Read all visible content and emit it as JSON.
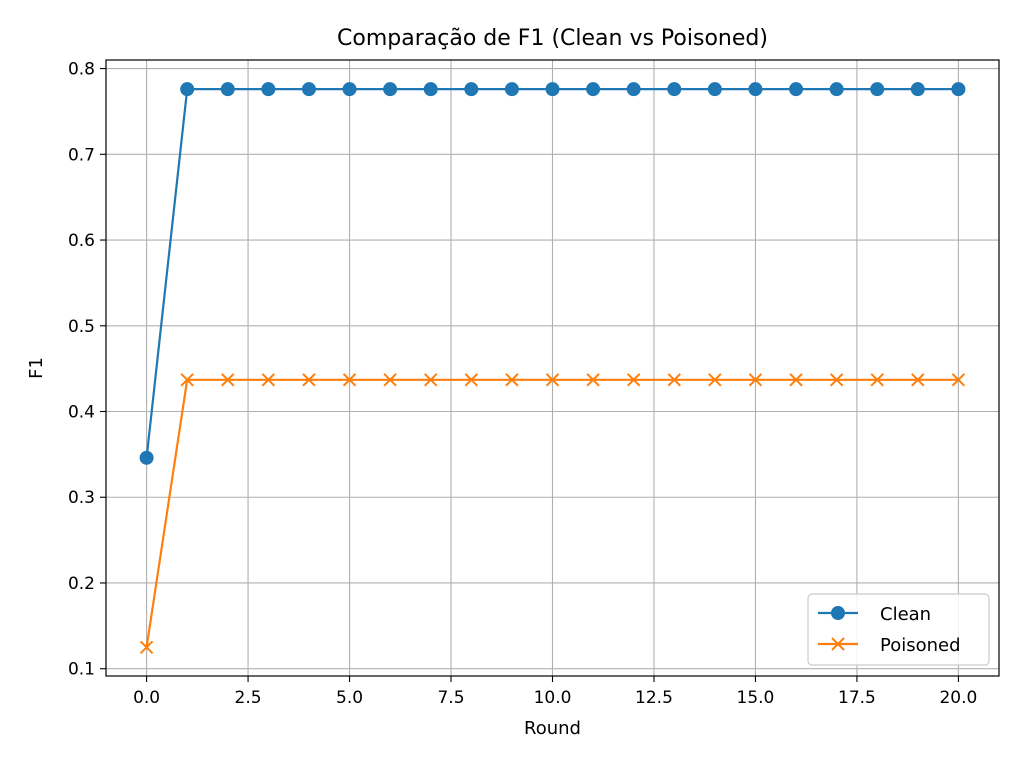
{
  "chart_data": {
    "type": "line",
    "title": "Comparação de F1 (Clean vs Poisoned)",
    "xlabel": "Round",
    "ylabel": "F1",
    "xlim": [
      -1,
      21
    ],
    "ylim": [
      0.0915,
      0.81
    ],
    "x_ticks": [
      0,
      2.5,
      5,
      7.5,
      10,
      12.5,
      15,
      17.5,
      20
    ],
    "x_tick_labels": [
      "0.0",
      "2.5",
      "5.0",
      "7.5",
      "10.0",
      "12.5",
      "15.0",
      "17.5",
      "20.0"
    ],
    "y_ticks": [
      0.1,
      0.2,
      0.3,
      0.4,
      0.5,
      0.6,
      0.7,
      0.8
    ],
    "y_tick_labels": [
      "0.1",
      "0.2",
      "0.3",
      "0.4",
      "0.5",
      "0.6",
      "0.7",
      "0.8"
    ],
    "grid": true,
    "legend_position": "bottom-right",
    "x": [
      0,
      1,
      2,
      3,
      4,
      5,
      6,
      7,
      8,
      9,
      10,
      11,
      12,
      13,
      14,
      15,
      16,
      17,
      18,
      19,
      20
    ],
    "series": [
      {
        "name": "Clean",
        "color": "#1f77b4",
        "marker": "circle",
        "values": [
          0.346,
          0.776,
          0.776,
          0.776,
          0.776,
          0.776,
          0.776,
          0.776,
          0.776,
          0.776,
          0.776,
          0.776,
          0.776,
          0.776,
          0.776,
          0.776,
          0.776,
          0.776,
          0.776,
          0.776,
          0.776
        ]
      },
      {
        "name": "Poisoned",
        "color": "#ff7f0e",
        "marker": "x",
        "values": [
          0.125,
          0.437,
          0.437,
          0.437,
          0.437,
          0.437,
          0.437,
          0.437,
          0.437,
          0.437,
          0.437,
          0.437,
          0.437,
          0.437,
          0.437,
          0.437,
          0.437,
          0.437,
          0.437,
          0.437,
          0.437
        ]
      }
    ]
  }
}
